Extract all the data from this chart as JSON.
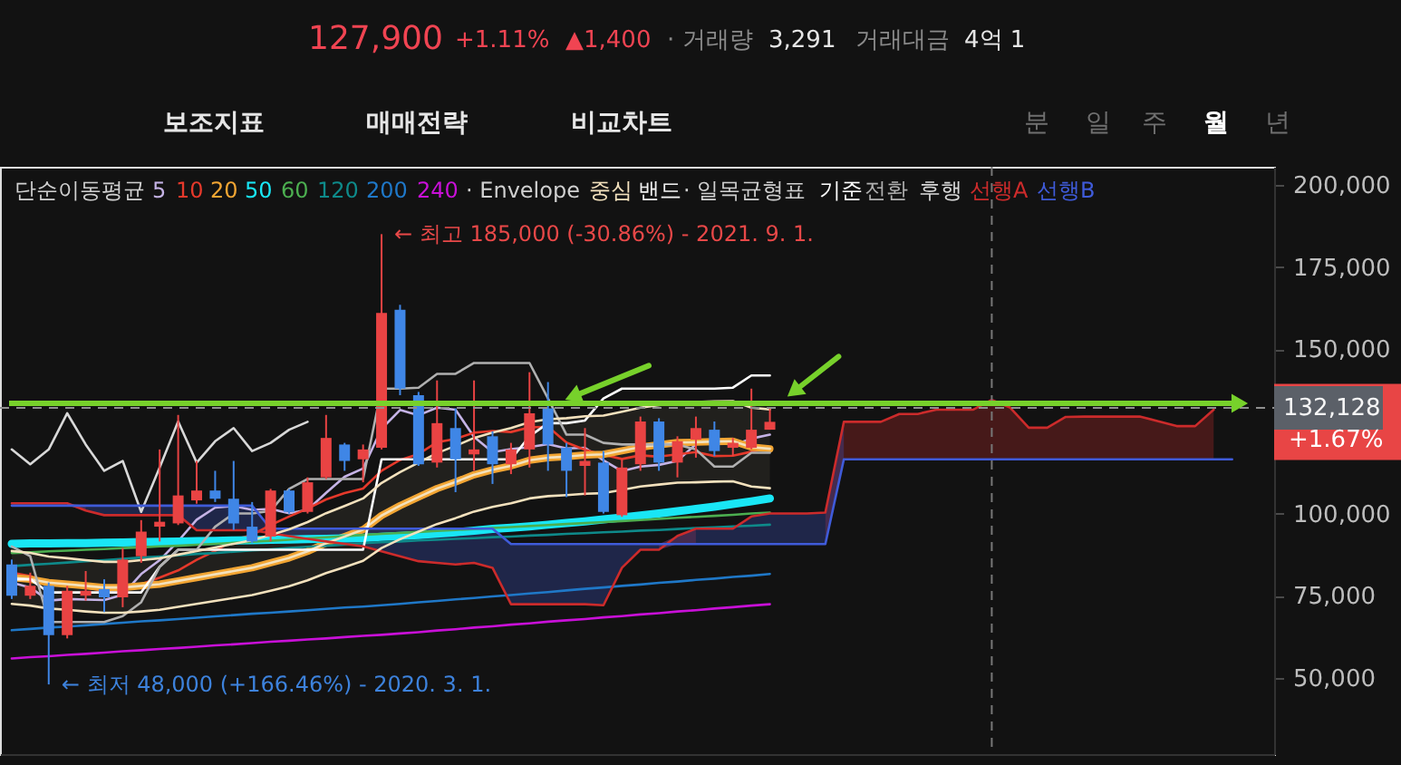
{
  "chart_data": {
    "type": "candlestick",
    "categories": [
      null,
      null,
      null,
      null,
      null,
      null,
      null,
      null,
      null,
      null,
      null,
      null,
      null,
      null,
      null,
      null,
      null,
      null,
      null,
      null,
      null,
      null,
      null,
      null,
      null,
      null,
      null,
      null,
      null,
      null,
      null,
      null,
      null,
      null,
      null,
      null,
      null,
      null,
      null,
      null,
      null,
      null,
      null,
      null,
      null,
      null,
      null,
      null,
      null,
      null,
      null,
      null,
      null,
      null,
      null,
      null,
      null,
      null,
      null,
      null,
      null,
      null,
      null,
      null,
      null,
      null,
      null
    ],
    "ohlc": [
      [
        84500,
        86000,
        74000,
        75000
      ],
      [
        75000,
        82000,
        74000,
        78000
      ],
      [
        78000,
        79000,
        48000,
        63000
      ],
      [
        63000,
        78000,
        62000,
        76500
      ],
      [
        75000,
        82500,
        73500,
        76500
      ],
      [
        77000,
        80000,
        70000,
        74500
      ],
      [
        74500,
        89500,
        71500,
        86000
      ],
      [
        87000,
        98000,
        85000,
        94500
      ],
      [
        96000,
        119500,
        91500,
        97500
      ],
      [
        97000,
        130000,
        96500,
        105500
      ],
      [
        104000,
        116000,
        103000,
        107000
      ],
      [
        107000,
        113000,
        103500,
        104500
      ],
      [
        104500,
        116000,
        95000,
        97000
      ],
      [
        96000,
        103500,
        91000,
        91500
      ],
      [
        93000,
        107500,
        91500,
        107000
      ],
      [
        107000,
        107500,
        100000,
        100500
      ],
      [
        100500,
        111000,
        100000,
        109500
      ],
      [
        111000,
        130000,
        110500,
        123000
      ],
      [
        121000,
        121500,
        113000,
        116000
      ],
      [
        116500,
        121000,
        109500,
        119500
      ],
      [
        120000,
        185000,
        119500,
        161000
      ],
      [
        162000,
        163500,
        136000,
        138000
      ],
      [
        136000,
        137000,
        114500,
        115000
      ],
      [
        115500,
        140500,
        114000,
        127500
      ],
      [
        126000,
        132000,
        106500,
        116500
      ],
      [
        118000,
        140500,
        113000,
        119500
      ],
      [
        123500,
        125000,
        109000,
        115000
      ],
      [
        115000,
        121500,
        112000,
        119500
      ],
      [
        119500,
        143000,
        114000,
        130500
      ],
      [
        132000,
        140000,
        113000,
        121000
      ],
      [
        120000,
        121500,
        105000,
        113000
      ],
      [
        114500,
        126000,
        105500,
        116000
      ],
      [
        115500,
        119000,
        100000,
        100500
      ],
      [
        99500,
        116500,
        99000,
        114000
      ],
      [
        115000,
        129500,
        113000,
        128000
      ],
      [
        128000,
        129000,
        113000,
        115500
      ],
      [
        115500,
        123500,
        111000,
        122000
      ],
      [
        122500,
        129500,
        117000,
        126000
      ],
      [
        125500,
        128000,
        117500,
        119000
      ],
      [
        120000,
        123000,
        117500,
        121500
      ],
      [
        120000,
        138000,
        119500,
        125500
      ],
      [
        125500,
        132000,
        125500,
        127900
      ],
      null,
      null,
      null,
      null,
      null,
      null,
      null,
      null,
      null,
      null,
      null,
      null,
      null,
      null,
      null,
      null,
      null,
      null,
      null,
      null,
      null,
      null,
      null,
      null,
      null
    ],
    "colors": [
      "#3f86e6",
      "#e94343",
      "#3f86e6",
      "#e94343",
      "#e94343",
      "#3f86e6",
      "#e94343",
      "#e94343",
      "#e94343",
      "#e94343",
      "#e94343",
      "#3f86e6",
      "#3f86e6",
      "#3f86e6",
      "#e94343",
      "#3f86e6",
      "#e94343",
      "#e94343",
      "#3f86e6",
      "#e94343",
      "#e94343",
      "#3f86e6",
      "#3f86e6",
      "#e94343",
      "#3f86e6",
      "#e94343",
      "#3f86e6",
      "#e94343",
      "#e94343",
      "#3f86e6",
      "#3f86e6",
      "#e94343",
      "#3f86e6",
      "#e94343",
      "#e94343",
      "#3f86e6",
      "#e94343",
      "#e94343",
      "#3f86e6",
      "#e94343",
      "#e94343",
      "#e94343",
      null,
      null,
      null,
      null,
      null,
      null,
      null,
      null,
      null,
      null,
      null,
      null,
      null,
      null,
      null,
      null,
      null,
      null,
      null,
      null,
      null,
      null,
      null,
      null,
      null
    ],
    "series": [
      {
        "type": "line",
        "name": "5",
        "color": "#c5b3e6",
        "values": [
          79000,
          77500,
          73500,
          74000,
          73800,
          73700,
          75300,
          81600,
          85800,
          91600,
          98100,
          101800,
          102300,
          101100,
          101400,
          100100,
          101100,
          106300,
          111200,
          113700,
          125800,
          131500,
          129900,
          132200,
          131600,
          123300,
          118700,
          119600,
          120200,
          121100,
          119800,
          120000,
          116200,
          112900,
          114300,
          114800,
          116000,
          121100,
          122100,
          120800,
          122800,
          124000,
          null,
          null,
          null,
          null,
          null,
          null,
          null,
          null,
          null,
          null,
          null,
          null,
          null,
          null,
          null,
          null,
          null,
          null,
          null,
          null,
          null,
          null,
          null,
          null,
          null
        ]
      },
      {
        "type": "line",
        "name": "10",
        "color": "#e5392b",
        "values": [
          82000,
          81000,
          79000,
          78000,
          77500,
          76500,
          77000,
          78500,
          80500,
          82700,
          85900,
          88600,
          92000,
          93500,
          96500,
          99100,
          101500,
          104300,
          106200,
          107600,
          113000,
          116300,
          118100,
          121700,
          122700,
          124600,
          125100,
          124800,
          126200,
          126400,
          121600,
          119400,
          117900,
          116600,
          117700,
          117300,
          118000,
          118700,
          117500,
          117600,
          118800,
          120000,
          null,
          null,
          null,
          null,
          null,
          null,
          null,
          null,
          null,
          null,
          null,
          null,
          null,
          null,
          null,
          null,
          null,
          null,
          null,
          null,
          null,
          null,
          null,
          null,
          null
        ]
      },
      {
        "type": "line",
        "name": "20",
        "color": "#f2a533",
        "values": [
          80500,
          80000,
          79000,
          78500,
          78000,
          77500,
          77500,
          78000,
          78500,
          79500,
          80500,
          81500,
          82500,
          83500,
          85000,
          86500,
          88500,
          91000,
          93000,
          95100,
          99400,
          102400,
          105000,
          107600,
          109600,
          111800,
          113300,
          114500,
          116200,
          117000,
          117300,
          117800,
          118000,
          119100,
          120200,
          120900,
          121600,
          121700,
          121900,
          122000,
          120200,
          119700,
          null,
          null,
          null,
          null,
          null,
          null,
          null,
          null,
          null,
          null,
          null,
          null,
          null,
          null,
          null,
          null,
          null,
          null,
          null,
          null,
          null,
          null,
          null,
          null,
          null
        ]
      },
      {
        "type": "line",
        "name": "50",
        "color": "#19e6f5",
        "values": [
          90800,
          90900,
          90900,
          91000,
          91000,
          91100,
          91200,
          91300,
          91400,
          91500,
          91600,
          91700,
          91800,
          91900,
          92000,
          92100,
          92200,
          92300,
          92400,
          92600,
          92900,
          93200,
          93500,
          93900,
          94300,
          94800,
          95300,
          95700,
          96100,
          96600,
          97100,
          97600,
          98200,
          98800,
          99400,
          100000,
          100700,
          101400,
          102100,
          102900,
          103700,
          104600,
          null,
          null,
          null,
          null,
          null,
          null,
          null,
          null,
          null,
          null,
          null,
          null,
          null,
          null,
          null,
          null,
          null,
          null,
          null,
          null,
          null,
          null,
          null,
          null,
          null
        ]
      },
      {
        "type": "line",
        "name": "60",
        "color": "#4caf50",
        "values": [
          88000,
          88200,
          88500,
          88700,
          89000,
          89200,
          89500,
          89700,
          90000,
          90200,
          90500,
          90800,
          91100,
          91400,
          91700,
          92000,
          92400,
          92800,
          93100,
          93500,
          93800,
          94100,
          94400,
          94700,
          95000,
          95300,
          95600,
          95900,
          96200,
          96500,
          96800,
          97100,
          97400,
          97700,
          98000,
          98400,
          98700,
          99000,
          99300,
          99600,
          100000,
          100300,
          null,
          null,
          null,
          null,
          null,
          null,
          null,
          null,
          null,
          null,
          null,
          null,
          null,
          null,
          null,
          null,
          null,
          null,
          null,
          null,
          null,
          null,
          null,
          null,
          null
        ]
      },
      {
        "type": "line",
        "name": "120",
        "color": "#0e8a8a",
        "values": [
          84000,
          84400,
          84700,
          85100,
          85500,
          85800,
          86200,
          86600,
          86900,
          87300,
          87700,
          88000,
          88400,
          88800,
          89100,
          89500,
          89900,
          90200,
          90600,
          91000,
          91300,
          91500,
          91800,
          92000,
          92300,
          92500,
          92800,
          93000,
          93300,
          93500,
          93800,
          94000,
          94300,
          94500,
          94800,
          95000,
          95300,
          95600,
          95800,
          96100,
          96300,
          96600,
          null,
          null,
          null,
          null,
          null,
          null,
          null,
          null,
          null,
          null,
          null,
          null,
          null,
          null,
          null,
          null,
          null,
          null,
          null,
          null,
          null,
          null,
          null,
          null,
          null
        ]
      },
      {
        "type": "line",
        "name": "200",
        "color": "#1f78c8",
        "values": [
          64500,
          64900,
          65300,
          65600,
          66000,
          66400,
          66800,
          67200,
          67500,
          67900,
          68300,
          68700,
          69100,
          69500,
          69800,
          70200,
          70600,
          71000,
          71400,
          71700,
          72100,
          72500,
          73000,
          73400,
          73900,
          74300,
          74800,
          75200,
          75700,
          76100,
          76600,
          77100,
          77500,
          78000,
          78400,
          78900,
          79300,
          79800,
          80200,
          80700,
          81100,
          81600,
          null,
          null,
          null,
          null,
          null,
          null,
          null,
          null,
          null,
          null,
          null,
          null,
          null,
          null,
          null,
          null,
          null,
          null,
          null,
          null,
          null,
          null,
          null,
          null,
          null
        ]
      },
      {
        "type": "line",
        "name": "240",
        "color": "#c910d8",
        "values": [
          55900,
          56300,
          56600,
          57000,
          57300,
          57700,
          58100,
          58400,
          58800,
          59100,
          59500,
          59900,
          60200,
          60600,
          61000,
          61300,
          61700,
          62000,
          62400,
          62800,
          63100,
          63500,
          63900,
          64400,
          64800,
          65300,
          65700,
          66200,
          66600,
          67100,
          67500,
          67900,
          68400,
          68800,
          69300,
          69700,
          70200,
          70600,
          71100,
          71500,
          72000,
          72400,
          null,
          null,
          null,
          null,
          null,
          null,
          null,
          null,
          null,
          null,
          null,
          null,
          null,
          null,
          null,
          null,
          null,
          null,
          null,
          null,
          null,
          null,
          null,
          null,
          null
        ]
      },
      {
        "type": "line",
        "name": "중심",
        "color": "#f3e1bd",
        "values": [
          80500,
          80000,
          79000,
          78500,
          78000,
          77500,
          77500,
          78000,
          78500,
          79500,
          80500,
          81500,
          82500,
          83500,
          85000,
          86500,
          88500,
          91000,
          93000,
          95100,
          99400,
          102400,
          105000,
          107600,
          109600,
          111800,
          113300,
          114500,
          116200,
          117000,
          117300,
          117800,
          118000,
          119100,
          120200,
          120900,
          121600,
          121700,
          121900,
          122000,
          120200,
          119700,
          null,
          null,
          null,
          null,
          null,
          null,
          null,
          null,
          null,
          null,
          null,
          null,
          null,
          null,
          null,
          null,
          null,
          null,
          null,
          null,
          null,
          null,
          null,
          null,
          null
        ],
        "lower": [
          72500,
          72000,
          71100,
          70700,
          70200,
          69800,
          69800,
          70200,
          70700,
          71600,
          72500,
          73400,
          74300,
          75200,
          76500,
          77900,
          79700,
          81900,
          83700,
          85600,
          89500,
          92200,
          94500,
          96800,
          98600,
          100600,
          102000,
          103100,
          104600,
          105300,
          105600,
          106000,
          106200,
          107200,
          108200,
          108800,
          109400,
          109500,
          109700,
          109800,
          108200,
          107700,
          null,
          null,
          null,
          null,
          null,
          null,
          null,
          null,
          null,
          null,
          null,
          null,
          null,
          null,
          null,
          null,
          null,
          null,
          null,
          null,
          null,
          null,
          null,
          null,
          null
        ],
        "upper": [
          88600,
          88000,
          86900,
          86400,
          85800,
          85300,
          85300,
          85800,
          86400,
          87500,
          88600,
          89700,
          90800,
          91900,
          93500,
          95200,
          97400,
          100100,
          102300,
          104600,
          109300,
          112600,
          115500,
          118400,
          120600,
          123000,
          124600,
          126000,
          127800,
          128700,
          129000,
          129600,
          129800,
          131000,
          132200,
          133000,
          133800,
          133900,
          134100,
          134200,
          132200,
          131700,
          null,
          null,
          null,
          null,
          null,
          null,
          null,
          null,
          null,
          null,
          null,
          null,
          null,
          null,
          null,
          null,
          null,
          null,
          null,
          null,
          null,
          null,
          null,
          null,
          null
        ]
      },
      {
        "type": "line",
        "name": "기준",
        "color": "#ffffff",
        "values": [
          80000,
          80000,
          76000,
          76000,
          76000,
          76000,
          76000,
          76000,
          83800,
          89000,
          89000,
          89000,
          89000,
          89000,
          89000,
          89000,
          89000,
          89000,
          89000,
          89000,
          116500,
          116500,
          116500,
          116500,
          116500,
          116500,
          116500,
          116500,
          123500,
          127500,
          127500,
          128300,
          135000,
          138000,
          138000,
          138000,
          138000,
          138000,
          138000,
          138300,
          142000,
          142000,
          null,
          null,
          null,
          null,
          null,
          null,
          null,
          null,
          null,
          null,
          null,
          null,
          null,
          null,
          null,
          null,
          null,
          null,
          null,
          null,
          null,
          null,
          null,
          null,
          null
        ]
      },
      {
        "type": "line",
        "name": "전환",
        "color": "#b0b0b0",
        "values": [
          90000,
          87000,
          67000,
          67000,
          67000,
          67000,
          68800,
          73000,
          83800,
          89000,
          89000,
          96000,
          100000,
          100000,
          100800,
          107500,
          110500,
          110500,
          110500,
          110500,
          138000,
          138000,
          138300,
          142500,
          142500,
          145800,
          145800,
          145800,
          145800,
          135000,
          124000,
          124000,
          121500,
          121000,
          121000,
          121000,
          121000,
          119500,
          114300,
          114300,
          118500,
          118500,
          null,
          null,
          null,
          null,
          null,
          null,
          null,
          null,
          null,
          null,
          null,
          null,
          null,
          null,
          null,
          null,
          null,
          null,
          null,
          null,
          null,
          null,
          null,
          null,
          null
        ]
      },
      {
        "type": "line",
        "name": "후행",
        "color": "#d8d8d8",
        "values": [
          119500,
          115000,
          119500,
          130500,
          121000,
          113000,
          116000,
          100500,
          114000,
          128000,
          115500,
          122000,
          126000,
          119000,
          121500,
          125500,
          127900,
          null,
          null,
          null,
          null,
          null,
          null,
          null,
          null,
          null,
          null,
          null,
          null,
          null,
          null,
          null,
          null,
          null,
          null,
          null,
          null,
          null,
          null,
          null,
          null,
          null,
          null,
          null,
          null,
          null,
          null,
          null,
          null,
          null,
          null,
          null,
          null,
          null,
          null,
          null,
          null,
          null,
          null,
          null,
          null,
          null,
          null,
          null,
          null,
          null,
          null
        ]
      },
      {
        "type": "line",
        "name": "선행A",
        "color": "#cc2b2b",
        "values": [
          103100,
          103100,
          103100,
          103100,
          100900,
          99500,
          99500,
          99500,
          99500,
          99500,
          94900,
          94900,
          94900,
          94900,
          94000,
          93100,
          92300,
          91500,
          90800,
          90000,
          88500,
          87000,
          85500,
          85000,
          84500,
          85000,
          83500,
          72400,
          72400,
          72400,
          72400,
          72400,
          72100,
          83500,
          89000,
          89000,
          93200,
          95400,
          95400,
          95400,
          99100,
          100000,
          100000,
          100000,
          100300,
          127900,
          127900,
          127900,
          130300,
          130300,
          131600,
          131600,
          131600,
          134600,
          132200,
          126100,
          126100,
          129400,
          129500,
          129500,
          129500,
          129500,
          128100,
          126600,
          126600,
          131600,
          null
        ],
        "lower": [
          102400,
          102400,
          102400,
          102400,
          100900,
          null,
          null,
          null,
          null,
          null,
          null,
          null,
          null,
          null,
          null,
          null,
          null,
          null,
          null,
          null,
          null,
          null,
          null,
          null,
          null,
          null,
          null,
          null,
          null,
          null,
          null,
          null,
          null,
          null,
          null,
          89000,
          90700,
          90700,
          null,
          null,
          null,
          null,
          null,
          null,
          90700,
          116500,
          116500,
          116500,
          116500,
          116500,
          116500,
          116500,
          116500,
          116500,
          116500,
          116500,
          116500,
          116500,
          116500,
          116500,
          116500,
          116500,
          116500,
          116500,
          116500,
          116500,
          null
        ],
        "upper": [
          103100,
          103100,
          103100,
          103100,
          102400,
          null,
          null,
          null,
          null,
          null,
          null,
          null,
          null,
          null,
          null,
          null,
          null,
          null,
          null,
          null,
          null,
          null,
          null,
          null,
          null,
          null,
          null,
          null,
          null,
          null,
          null,
          null,
          null,
          null,
          null,
          90700,
          93200,
          95400,
          null,
          null,
          null,
          null,
          null,
          null,
          100300,
          127900,
          127900,
          127900,
          130300,
          130300,
          131600,
          131600,
          131600,
          134600,
          132200,
          126100,
          126100,
          129400,
          129500,
          129500,
          129500,
          129500,
          128100,
          126600,
          126600,
          131600,
          null
        ]
      },
      {
        "type": "line",
        "name": "선행B",
        "color": "#3f5bd9",
        "values": [
          102400,
          102400,
          102400,
          102400,
          102400,
          102400,
          102400,
          102400,
          102400,
          102400,
          102400,
          102400,
          102400,
          102400,
          95400,
          95400,
          95400,
          95400,
          95400,
          95400,
          95400,
          95400,
          95400,
          95400,
          95400,
          95400,
          95400,
          90700,
          90700,
          90700,
          90700,
          90700,
          90700,
          90700,
          90700,
          90700,
          90700,
          90700,
          90700,
          90700,
          90700,
          90700,
          90700,
          90700,
          90700,
          116500,
          116500,
          116500,
          116500,
          116500,
          116500,
          116500,
          116500,
          116500,
          116500,
          116500,
          116500,
          116500,
          116500,
          116500,
          116500,
          116500,
          116500,
          116500,
          116500,
          116500,
          116500
        ],
        "lower": [
          null,
          null,
          null,
          102400,
          100900,
          99500,
          99500,
          99500,
          99500,
          99500,
          94900,
          94900,
          94900,
          94900,
          94000,
          93100,
          92300,
          91500,
          90800,
          90000,
          88500,
          87000,
          85500,
          85000,
          84500,
          85000,
          83500,
          72400,
          72400,
          72400,
          72400,
          72400,
          72100,
          83500,
          89000,
          89000,
          90700,
          90700,
          90700,
          90700,
          90700,
          90700,
          90700,
          90700,
          90700,
          116500,
          null,
          null,
          null,
          null,
          null,
          null,
          null,
          null,
          null,
          null,
          null,
          null,
          null,
          null,
          null,
          null,
          null,
          null,
          null,
          null,
          null
        ],
        "upper": [
          null,
          null,
          null,
          103100,
          102400,
          102400,
          102400,
          102400,
          102400,
          102400,
          102400,
          102400,
          102400,
          102400,
          95400,
          95400,
          95400,
          95400,
          95400,
          95400,
          95400,
          95400,
          95400,
          95400,
          95400,
          95400,
          95400,
          90700,
          90700,
          90700,
          90700,
          90700,
          90700,
          90700,
          90700,
          90700,
          93200,
          95400,
          95400,
          95400,
          99100,
          100000,
          100000,
          100000,
          100300,
          127900,
          null,
          null,
          null,
          null,
          null,
          null,
          null,
          null,
          null,
          null,
          null,
          null,
          null,
          null,
          null,
          null,
          null,
          null,
          null,
          null,
          null
        ]
      },
      {
        "type": "line",
        "color": "#f3e1bd",
        "values": [
          88600,
          88000,
          86900,
          86400,
          85800,
          85300,
          85300,
          85800,
          86400,
          87500,
          88600,
          89700,
          90800,
          91900,
          93500,
          95200,
          97400,
          100100,
          102300,
          104600,
          109300,
          112600,
          115500,
          118400,
          120600,
          123000,
          124600,
          126000,
          127800,
          128700,
          129000,
          129600,
          129800,
          131000,
          132200,
          133000,
          133800,
          133900,
          134100,
          134200,
          132200,
          131700,
          null,
          null,
          null,
          null,
          null,
          null,
          null,
          null,
          null,
          null,
          null,
          null,
          null,
          null,
          null,
          null,
          null,
          null,
          null,
          null,
          null,
          null,
          null,
          null,
          null
        ]
      },
      {
        "type": "line",
        "color": "#f3e1bd",
        "values": [
          72500,
          72000,
          71100,
          70700,
          70200,
          69800,
          69800,
          70200,
          70700,
          71600,
          72500,
          73400,
          74300,
          75200,
          76500,
          77900,
          79700,
          81900,
          83700,
          85600,
          89500,
          92200,
          94500,
          96800,
          98600,
          100600,
          102000,
          103100,
          104600,
          105300,
          105600,
          106000,
          106200,
          107200,
          108200,
          108800,
          109400,
          109500,
          109700,
          109800,
          108200,
          107700,
          null,
          null,
          null,
          null,
          null,
          null,
          null,
          null,
          null,
          null,
          null,
          null,
          null,
          null,
          null,
          null,
          null,
          null,
          null,
          null,
          null,
          null,
          null,
          null,
          null
        ]
      }
    ],
    "legend_title": "단순이동평균",
    "legend": "top left",
    "tick_labels": "y",
    "ylim": [
      26800,
      205500
    ],
    "yticks": [
      {
        "value": 50000,
        "label": "50,000"
      },
      {
        "value": 75000,
        "label": "75,000"
      },
      {
        "value": 100000,
        "label": "100,000"
      },
      {
        "value": 150000,
        "label": "150,000"
      },
      {
        "value": 175000,
        "label": "175,000"
      },
      {
        "value": 200000,
        "label": "200,000"
      }
    ],
    "ref_lines": [
      {
        "axis": "y",
        "value": 132128,
        "line_style": "dashed",
        "color": "#8f8f8f"
      },
      {
        "axis": "y",
        "value": 133500,
        "color": "#77d12b"
      }
    ],
    "annotations": [
      "127,900",
      "+1.11%",
      "▲1,400",
      "· 거래량",
      "3,291",
      "거래대금",
      "4억 1",
      "보조지표",
      "매매전략",
      "비교차트",
      "분",
      "일",
      "주",
      "월",
      "년",
      "· Envelope",
      "밴드",
      "· 일목균형표",
      "← 최고 185,000 (-30.86%) - 2021. 9. 1.",
      "← 최저 48,000 (+166.46%) - 2020. 3. 1.",
      "+1.67%",
      "132,128"
    ]
  }
}
